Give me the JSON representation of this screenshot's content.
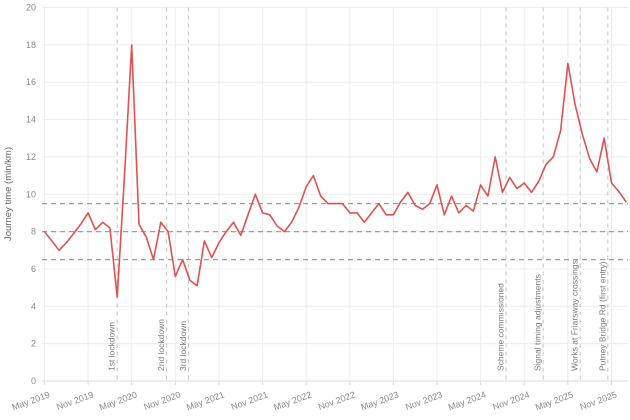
{
  "chart_data": {
    "type": "line",
    "title": "",
    "ylabel": "Journey time (min/km)",
    "xlabel": "",
    "legend": false,
    "grid": true,
    "ylim": [
      0,
      20
    ],
    "y_ticks": [
      0,
      2,
      4,
      6,
      8,
      10,
      12,
      14,
      16,
      18,
      20
    ],
    "x_interval": "monthly",
    "x_start_month": "2019-05",
    "x_tick_labels": [
      "May 2019",
      "Nov 2019",
      "May 2020",
      "Nov 2020",
      "May 2021",
      "Nov 2021",
      "May 2022",
      "Nov 2022",
      "May 2023",
      "Nov 2023",
      "May 2024",
      "Nov 2024",
      "May 2025",
      "Nov 2025"
    ],
    "x_tick_month_index": [
      0,
      6,
      12,
      18,
      24,
      30,
      36,
      42,
      48,
      54,
      60,
      66,
      72,
      78
    ],
    "series": [
      {
        "name": "Journey time",
        "color": "#e05252",
        "values": [
          8.0,
          7.5,
          7.0,
          7.4,
          7.9,
          8.4,
          9.0,
          8.1,
          8.5,
          8.2,
          4.5,
          11.0,
          18.0,
          8.4,
          7.7,
          6.5,
          8.5,
          8.0,
          5.6,
          6.5,
          5.4,
          5.1,
          7.5,
          6.6,
          7.4,
          8.0,
          8.5,
          7.8,
          8.9,
          10.0,
          9.0,
          8.9,
          8.3,
          8.0,
          8.5,
          9.3,
          10.4,
          11.0,
          9.9,
          9.5,
          9.5,
          9.5,
          9.0,
          9.0,
          8.5,
          9.0,
          9.5,
          8.9,
          8.9,
          9.6,
          10.1,
          9.4,
          9.2,
          9.5,
          10.5,
          8.9,
          9.9,
          9.0,
          9.4,
          9.1,
          10.5,
          9.9,
          12.0,
          10.1,
          10.9,
          10.3,
          10.6,
          10.1,
          10.7,
          11.6,
          12.0,
          13.4,
          17.0,
          14.8,
          13.2,
          11.9,
          11.2,
          13.0,
          10.6,
          10.15,
          9.6
        ]
      }
    ],
    "reference_lines_y": [
      9.5,
      8.0,
      6.5
    ],
    "annotations": [
      {
        "label": "1st lockdown",
        "month_index": 10
      },
      {
        "label": "2nd lockdown",
        "month_index": 16.8
      },
      {
        "label": "3rd lockdown",
        "month_index": 19.8
      },
      {
        "label": "Scheme commissioned",
        "month_index": 63.5
      },
      {
        "label": "Signal timing adjustments",
        "month_index": 68.6
      },
      {
        "label": "Works at Friarsway crossings",
        "month_index": 73.7
      },
      {
        "label": "Putney Bridge Rd (first entry)",
        "month_index": 77.5
      }
    ],
    "colors": {
      "series": "#e05252",
      "grid": "#ececec",
      "axis_baseline": "#d9d9d9",
      "reference_dash": "#9e9e9e",
      "annotation_dash": "#c3c3c3",
      "tick_text": "#8a8a8a",
      "annotation_text": "#7a7a7a",
      "axis_title_text": "#666666"
    }
  }
}
